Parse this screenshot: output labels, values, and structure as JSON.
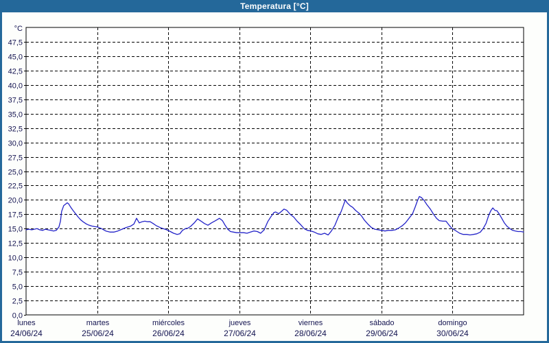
{
  "window": {
    "title": "Temperatura [°C]"
  },
  "colors": {
    "titlebar_bg": "#24689a",
    "frame_border": "#24689a",
    "plot_bg": "#ffffff",
    "page_bg": "#fdfefc",
    "grid": "#000000",
    "axis": "#000000",
    "label_text": "#131350",
    "curve": "#2222c8"
  },
  "chart_data": {
    "type": "line",
    "title": "Temperatura [°C]",
    "unit_label": "°C",
    "xlabel": "",
    "ylabel": "°C",
    "ylim": [
      0,
      50
    ],
    "ytick_step": 2.5,
    "ytick_labels": [
      "0,0",
      "2,5",
      "5,0",
      "7,5",
      "10,0",
      "12,5",
      "15,0",
      "17,5",
      "20,0",
      "22,5",
      "25,0",
      "27,5",
      "30,0",
      "32,5",
      "35,0",
      "37,5",
      "40,0",
      "42,5",
      "45,0",
      "47,5"
    ],
    "x_range_hours": [
      0,
      168
    ],
    "grid": "dashed",
    "legend_position": "none",
    "days": [
      {
        "label": "lunes",
        "date": "24/06/24"
      },
      {
        "label": "martes",
        "date": "25/06/24"
      },
      {
        "label": "miércoles",
        "date": "26/06/24"
      },
      {
        "label": "jueves",
        "date": "27/06/24"
      },
      {
        "label": "viernes",
        "date": "28/06/24"
      },
      {
        "label": "sábado",
        "date": "29/06/24"
      },
      {
        "label": "domingo",
        "date": "30/06/24"
      }
    ],
    "series": [
      {
        "name": "Temperatura",
        "unit": "°C",
        "points": [
          [
            0,
            14.8
          ],
          [
            0.9,
            14.9
          ],
          [
            1.9,
            14.8
          ],
          [
            2.8,
            14.9
          ],
          [
            3.7,
            15.0
          ],
          [
            4.6,
            14.8
          ],
          [
            5.6,
            14.7
          ],
          [
            6.5,
            14.9
          ],
          [
            7.4,
            14.8
          ],
          [
            8.3,
            14.7
          ],
          [
            9.3,
            14.6
          ],
          [
            10.2,
            14.7
          ],
          [
            11.1,
            15.3
          ],
          [
            11.6,
            16.3
          ],
          [
            12.0,
            18.0
          ],
          [
            12.7,
            19.0
          ],
          [
            13.9,
            19.5
          ],
          [
            14.4,
            19.3
          ],
          [
            15.1,
            18.7
          ],
          [
            15.8,
            18.2
          ],
          [
            16.7,
            17.6
          ],
          [
            17.6,
            17.0
          ],
          [
            18.5,
            16.5
          ],
          [
            19.5,
            16.1
          ],
          [
            20.4,
            15.8
          ],
          [
            21.3,
            15.6
          ],
          [
            22.2,
            15.45
          ],
          [
            23.2,
            15.35
          ],
          [
            24.1,
            15.3
          ],
          [
            25.5,
            15.0
          ],
          [
            26.9,
            14.6
          ],
          [
            28.3,
            14.4
          ],
          [
            29.7,
            14.4
          ],
          [
            31.0,
            14.6
          ],
          [
            32.4,
            14.9
          ],
          [
            33.8,
            15.2
          ],
          [
            35.2,
            15.4
          ],
          [
            36.4,
            15.8
          ],
          [
            37.3,
            16.8
          ],
          [
            38.2,
            16.0
          ],
          [
            39.2,
            16.2
          ],
          [
            40.1,
            16.3
          ],
          [
            41.0,
            16.2
          ],
          [
            41.9,
            16.2
          ],
          [
            42.9,
            15.9
          ],
          [
            44.0,
            15.5
          ],
          [
            45.2,
            15.2
          ],
          [
            46.3,
            15.0
          ],
          [
            47.5,
            14.8
          ],
          [
            48.7,
            14.5
          ],
          [
            49.8,
            14.2
          ],
          [
            51.0,
            14.0
          ],
          [
            51.9,
            14.1
          ],
          [
            52.8,
            14.7
          ],
          [
            53.8,
            15.0
          ],
          [
            54.7,
            15.1
          ],
          [
            55.6,
            15.4
          ],
          [
            56.8,
            16.0
          ],
          [
            57.9,
            16.7
          ],
          [
            59.1,
            16.3
          ],
          [
            60.2,
            15.9
          ],
          [
            61.4,
            15.6
          ],
          [
            62.6,
            16.0
          ],
          [
            64.0,
            16.4
          ],
          [
            65.3,
            16.8
          ],
          [
            66.3,
            16.4
          ],
          [
            67.2,
            15.6
          ],
          [
            68.1,
            14.9
          ],
          [
            69.0,
            14.5
          ],
          [
            70.0,
            14.4
          ],
          [
            71.1,
            14.3
          ],
          [
            72.3,
            14.3
          ],
          [
            73.5,
            14.3
          ],
          [
            74.6,
            14.2
          ],
          [
            75.8,
            14.4
          ],
          [
            76.9,
            14.6
          ],
          [
            78.1,
            14.5
          ],
          [
            79.2,
            14.2
          ],
          [
            80.4,
            14.8
          ],
          [
            81.6,
            16.2
          ],
          [
            82.7,
            17.1
          ],
          [
            83.7,
            17.8
          ],
          [
            84.3,
            17.9
          ],
          [
            85.3,
            17.6
          ],
          [
            86.2,
            18.0
          ],
          [
            87.1,
            18.4
          ],
          [
            88.0,
            18.2
          ],
          [
            89.2,
            17.5
          ],
          [
            90.4,
            17.0
          ],
          [
            91.5,
            16.3
          ],
          [
            92.7,
            15.7
          ],
          [
            93.9,
            15.0
          ],
          [
            95.0,
            14.7
          ],
          [
            96.2,
            14.6
          ],
          [
            97.3,
            14.4
          ],
          [
            98.5,
            14.1
          ],
          [
            99.6,
            14.0
          ],
          [
            100.8,
            14.2
          ],
          [
            102.0,
            13.9
          ],
          [
            103.1,
            14.6
          ],
          [
            104.3,
            15.6
          ],
          [
            105.4,
            17.0
          ],
          [
            106.4,
            18.0
          ],
          [
            107.1,
            19.0
          ],
          [
            107.8,
            20.0
          ],
          [
            108.4,
            19.5
          ],
          [
            109.4,
            19.0
          ],
          [
            110.3,
            18.7
          ],
          [
            111.2,
            18.2
          ],
          [
            112.4,
            17.7
          ],
          [
            113.3,
            17.2
          ],
          [
            114.2,
            16.5
          ],
          [
            115.4,
            15.8
          ],
          [
            116.6,
            15.2
          ],
          [
            117.7,
            14.9
          ],
          [
            118.9,
            14.8
          ],
          [
            120.0,
            14.7
          ],
          [
            121.2,
            14.6
          ],
          [
            122.3,
            14.7
          ],
          [
            123.5,
            14.7
          ],
          [
            124.7,
            14.8
          ],
          [
            125.8,
            15.1
          ],
          [
            127.0,
            15.5
          ],
          [
            128.1,
            16.0
          ],
          [
            129.3,
            16.8
          ],
          [
            130.5,
            17.6
          ],
          [
            131.4,
            18.8
          ],
          [
            132.1,
            19.8
          ],
          [
            132.8,
            20.6
          ],
          [
            133.5,
            20.4
          ],
          [
            134.4,
            19.9
          ],
          [
            135.3,
            19.2
          ],
          [
            136.5,
            18.4
          ],
          [
            137.6,
            17.5
          ],
          [
            138.6,
            16.8
          ],
          [
            139.5,
            16.4
          ],
          [
            140.7,
            16.3
          ],
          [
            141.8,
            16.3
          ],
          [
            142.7,
            15.7
          ],
          [
            143.7,
            15.1
          ],
          [
            144.6,
            14.8
          ],
          [
            145.5,
            14.5
          ],
          [
            146.4,
            14.2
          ],
          [
            147.6,
            14.0
          ],
          [
            148.8,
            14.0
          ],
          [
            149.9,
            13.9
          ],
          [
            151.1,
            14.0
          ],
          [
            152.2,
            14.1
          ],
          [
            153.4,
            14.4
          ],
          [
            154.3,
            15.0
          ],
          [
            155.3,
            15.9
          ],
          [
            156.2,
            17.3
          ],
          [
            156.9,
            18.1
          ],
          [
            157.6,
            18.6
          ],
          [
            158.3,
            18.2
          ],
          [
            159.0,
            18.1
          ],
          [
            159.7,
            17.6
          ],
          [
            160.6,
            16.8
          ],
          [
            161.5,
            16.0
          ],
          [
            162.4,
            15.4
          ],
          [
            163.4,
            15.0
          ],
          [
            164.3,
            14.7
          ],
          [
            165.2,
            14.6
          ],
          [
            166.1,
            14.5
          ],
          [
            167.1,
            14.5
          ],
          [
            168,
            14.4
          ]
        ]
      }
    ]
  }
}
